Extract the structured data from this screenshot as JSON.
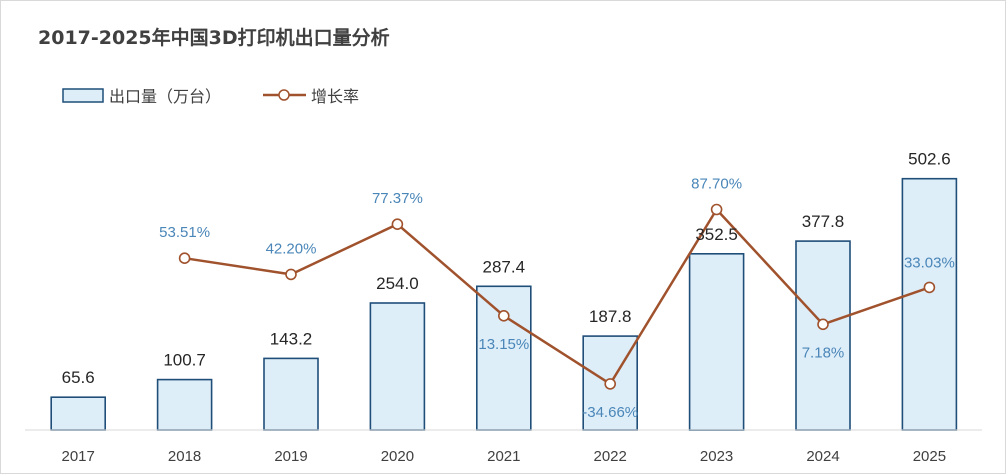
{
  "chart_data": {
    "type": "bar",
    "title": "2017-2025年中国3D打印机出口量分析",
    "categories": [
      "2017",
      "2018",
      "2019",
      "2020",
      "2021",
      "2022",
      "2023",
      "2024",
      "2025"
    ],
    "series": [
      {
        "name": "出口量（万台）",
        "kind": "bar",
        "values": [
          65.6,
          100.7,
          143.2,
          254.0,
          287.4,
          187.8,
          352.5,
          377.8,
          502.6
        ],
        "labels": [
          "65.6",
          "100.7",
          "143.2",
          "254.0",
          "287.4",
          "187.8",
          "352.5",
          "377.8",
          "502.6"
        ],
        "fill": "#deeef9",
        "stroke": "#1f4e79"
      },
      {
        "name": "增长率",
        "kind": "line",
        "values": [
          null,
          53.51,
          42.2,
          77.37,
          13.15,
          -34.66,
          87.7,
          7.18,
          33.03
        ],
        "labels": [
          "",
          "53.51%",
          "42.20%",
          "77.37%",
          "13.15%",
          "-34.66%",
          "87.70%",
          "7.18%",
          "33.03%"
        ],
        "color": "#a0522d",
        "label_color": "#4a86b8"
      }
    ],
    "legend_position": "top-left",
    "grid": false,
    "xlabel": "",
    "ylabel": ""
  }
}
